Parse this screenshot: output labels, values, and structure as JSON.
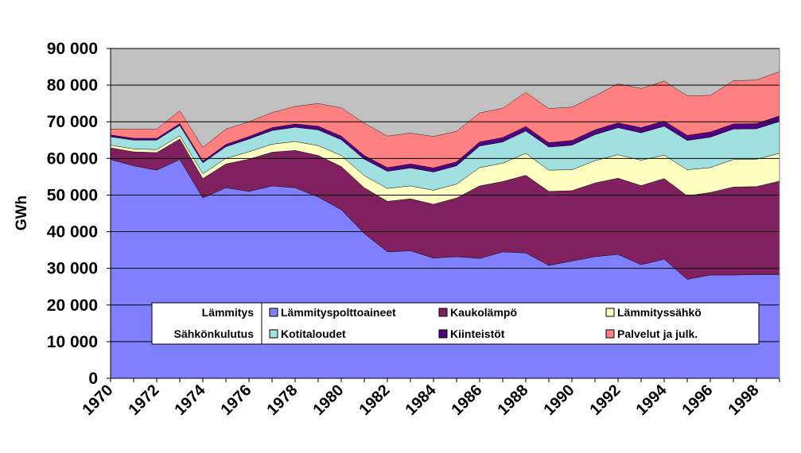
{
  "chart_data": {
    "type": "area",
    "stacked": true,
    "ylabel": "GWh",
    "ylim": [
      0,
      90000
    ],
    "yticks": [
      "0",
      "10 000",
      "20 000",
      "30 000",
      "40 000",
      "50 000",
      "60 000",
      "70 000",
      "80 000",
      "90 000"
    ],
    "x": [
      1970,
      1971,
      1972,
      1973,
      1974,
      1975,
      1976,
      1977,
      1978,
      1979,
      1980,
      1981,
      1982,
      1983,
      1984,
      1985,
      1986,
      1987,
      1988,
      1989,
      1990,
      1991,
      1992,
      1993,
      1994,
      1995,
      1996,
      1997,
      1998,
      1999
    ],
    "xtick_labels": [
      "1970",
      "1972",
      "1974",
      "1976",
      "1978",
      "1980",
      "1982",
      "1984",
      "1986",
      "1988",
      "1990",
      "1992",
      "1994",
      "1996",
      "1998"
    ],
    "grid": "horizontal",
    "plot_background": "#c0c0c0",
    "legend": {
      "placement": "bottom-center",
      "groups": [
        "Lämmitys",
        "Sähkönkulutus"
      ]
    },
    "series": [
      {
        "name": "Lämmityspolttoaineet",
        "group": "Lämmitys",
        "color": "#8080ff",
        "values": [
          59700,
          58000,
          56800,
          59700,
          49200,
          52000,
          51000,
          52500,
          52000,
          49500,
          46000,
          39500,
          34500,
          34800,
          32800,
          33200,
          32700,
          34500,
          34200,
          30800,
          32000,
          33200,
          33800,
          31000,
          32500,
          27000,
          28200,
          28200,
          28300,
          28300
        ]
      },
      {
        "name": "Kaukolämpö",
        "group": "Lämmitys",
        "color": "#802060",
        "values": [
          3200,
          3800,
          4800,
          5600,
          5300,
          6500,
          8800,
          9200,
          10200,
          11300,
          11800,
          12500,
          13800,
          14200,
          14700,
          16000,
          19800,
          19200,
          21200,
          20200,
          19200,
          20100,
          20800,
          21600,
          22000,
          22800,
          22500,
          24000,
          24000,
          25500
        ]
      },
      {
        "name": "Lämmityssähkö",
        "group": "Lämmitys",
        "color": "#ffffc0",
        "values": [
          700,
          800,
          800,
          900,
          1300,
          1500,
          2000,
          2200,
          2400,
          2700,
          3000,
          3300,
          3500,
          3500,
          3800,
          3800,
          5000,
          5000,
          6000,
          5800,
          5700,
          6100,
          6400,
          6900,
          6400,
          7100,
          6800,
          7500,
          7500,
          7600
        ]
      },
      {
        "name": "Kotitaloudet",
        "group": "Sähkönkulutus",
        "color": "#a0e0e0",
        "values": [
          2300,
          2400,
          2600,
          2800,
          3000,
          3200,
          3500,
          3700,
          3900,
          4300,
          4300,
          4500,
          4700,
          4900,
          5000,
          5000,
          5900,
          5800,
          6100,
          6300,
          6700,
          7100,
          7400,
          7500,
          7900,
          8000,
          8300,
          8300,
          8300,
          8700
        ]
      },
      {
        "name": "Kiinteistöt",
        "group": "Sähkönkulutus",
        "color": "#500080",
        "values": [
          500,
          500,
          500,
          500,
          500,
          600,
          700,
          800,
          900,
          1000,
          1000,
          1000,
          1000,
          1100,
          1100,
          1100,
          1100,
          1200,
          1200,
          1200,
          1300,
          1300,
          1300,
          1400,
          1400,
          1400,
          1400,
          1400,
          1400,
          1500
        ]
      },
      {
        "name": "Palvelut ja julk.",
        "group": "Sähkönkulutus",
        "color": "#ff8080",
        "values": [
          1600,
          2500,
          2500,
          3500,
          3700,
          4200,
          4000,
          4100,
          4800,
          6200,
          7700,
          8800,
          8600,
          8400,
          8600,
          8300,
          7900,
          8000,
          9300,
          9300,
          9100,
          9300,
          10700,
          10700,
          10900,
          10800,
          10000,
          11800,
          11900,
          12100
        ]
      }
    ]
  }
}
